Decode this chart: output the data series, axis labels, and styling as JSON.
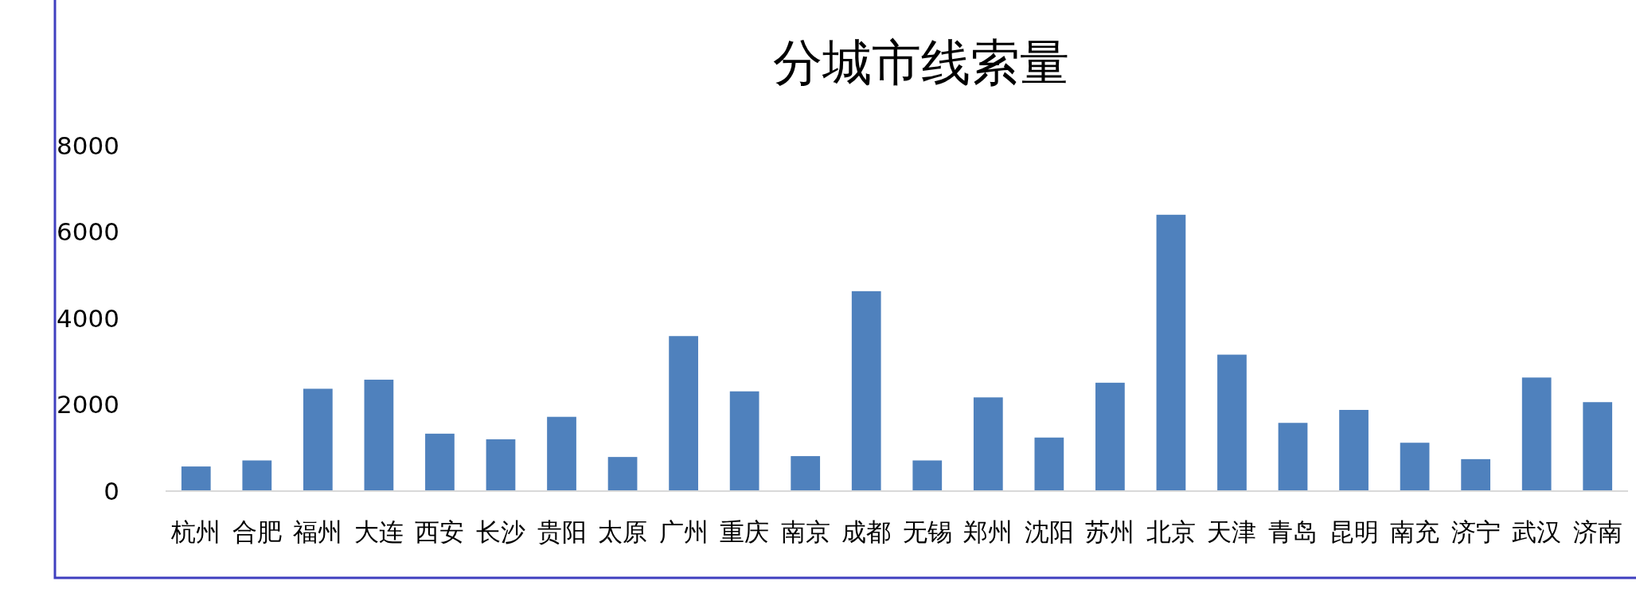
{
  "chart_data": {
    "type": "bar",
    "title": "分城市线索量",
    "categories": [
      "杭州",
      "合肥",
      "福州",
      "大连",
      "西安",
      "长沙",
      "贵阳",
      "太原",
      "广州",
      "重庆",
      "南京",
      "成都",
      "无锡",
      "郑州",
      "沈阳",
      "苏州",
      "北京",
      "天津",
      "青岛",
      "昆明",
      "南充",
      "济宁",
      "武汉",
      "济南"
    ],
    "values": [
      570,
      710,
      2370,
      2580,
      1330,
      1200,
      1720,
      790,
      3590,
      2310,
      810,
      4630,
      710,
      2170,
      1240,
      2510,
      6400,
      3160,
      1580,
      1880,
      1120,
      740,
      2630,
      2060
    ],
    "color": "#4f81bd",
    "ylim": [
      0,
      8000
    ],
    "yticks": [
      0,
      2000,
      4000,
      6000,
      8000
    ],
    "grid": false
  }
}
